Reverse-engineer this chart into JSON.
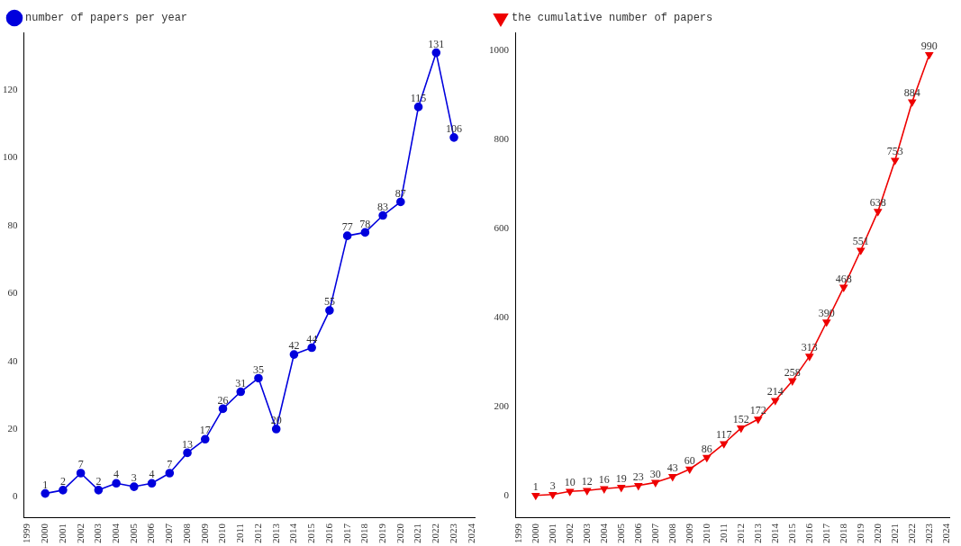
{
  "chart_data": [
    {
      "type": "line",
      "x": [
        2000,
        2001,
        2002,
        2003,
        2004,
        2005,
        2006,
        2007,
        2008,
        2009,
        2010,
        2011,
        2012,
        2013,
        2014,
        2015,
        2016,
        2017,
        2018,
        2019,
        2020,
        2021,
        2022,
        2023
      ],
      "series": [
        {
          "name": "number of papers per year",
          "color": "#0000dd",
          "values": [
            1,
            2,
            7,
            2,
            4,
            3,
            4,
            7,
            13,
            17,
            26,
            31,
            35,
            20,
            42,
            44,
            55,
            77,
            78,
            83,
            87,
            115,
            131,
            106
          ]
        }
      ],
      "marker": "circle",
      "data_labels": true,
      "legend": "top left",
      "grid": false,
      "xlim": [
        1998.8,
        2024.2
      ],
      "xticks": [
        1999,
        2000,
        2001,
        2002,
        2003,
        2004,
        2005,
        2006,
        2007,
        2008,
        2009,
        2010,
        2011,
        2012,
        2013,
        2014,
        2015,
        2016,
        2017,
        2018,
        2019,
        2020,
        2021,
        2022,
        2023,
        2024
      ],
      "ylim": [
        -6,
        137
      ],
      "yticks": [
        0,
        20,
        40,
        60,
        80,
        100,
        120
      ]
    },
    {
      "type": "line",
      "x": [
        2000,
        2001,
        2002,
        2003,
        2004,
        2005,
        2006,
        2007,
        2008,
        2009,
        2010,
        2011,
        2012,
        2013,
        2014,
        2015,
        2016,
        2017,
        2018,
        2019,
        2020,
        2021,
        2022,
        2023
      ],
      "series": [
        {
          "name": "the cumulative number of papers",
          "color": "#ee0000",
          "values": [
            1,
            3,
            10,
            12,
            16,
            19,
            23,
            30,
            43,
            60,
            86,
            117,
            152,
            172,
            214,
            258,
            313,
            390,
            468,
            551,
            638,
            753,
            884,
            990
          ]
        }
      ],
      "marker": "triangle",
      "data_labels": true,
      "legend": "top left",
      "grid": false,
      "xlim": [
        1998.8,
        2024.2
      ],
      "xticks": [
        1999,
        2000,
        2001,
        2002,
        2003,
        2004,
        2005,
        2006,
        2007,
        2008,
        2009,
        2010,
        2011,
        2012,
        2013,
        2014,
        2015,
        2016,
        2017,
        2018,
        2019,
        2020,
        2021,
        2022,
        2023,
        2024
      ],
      "ylim": [
        -48,
        1040
      ],
      "yticks": [
        0,
        200,
        400,
        600,
        800,
        1000
      ]
    }
  ]
}
